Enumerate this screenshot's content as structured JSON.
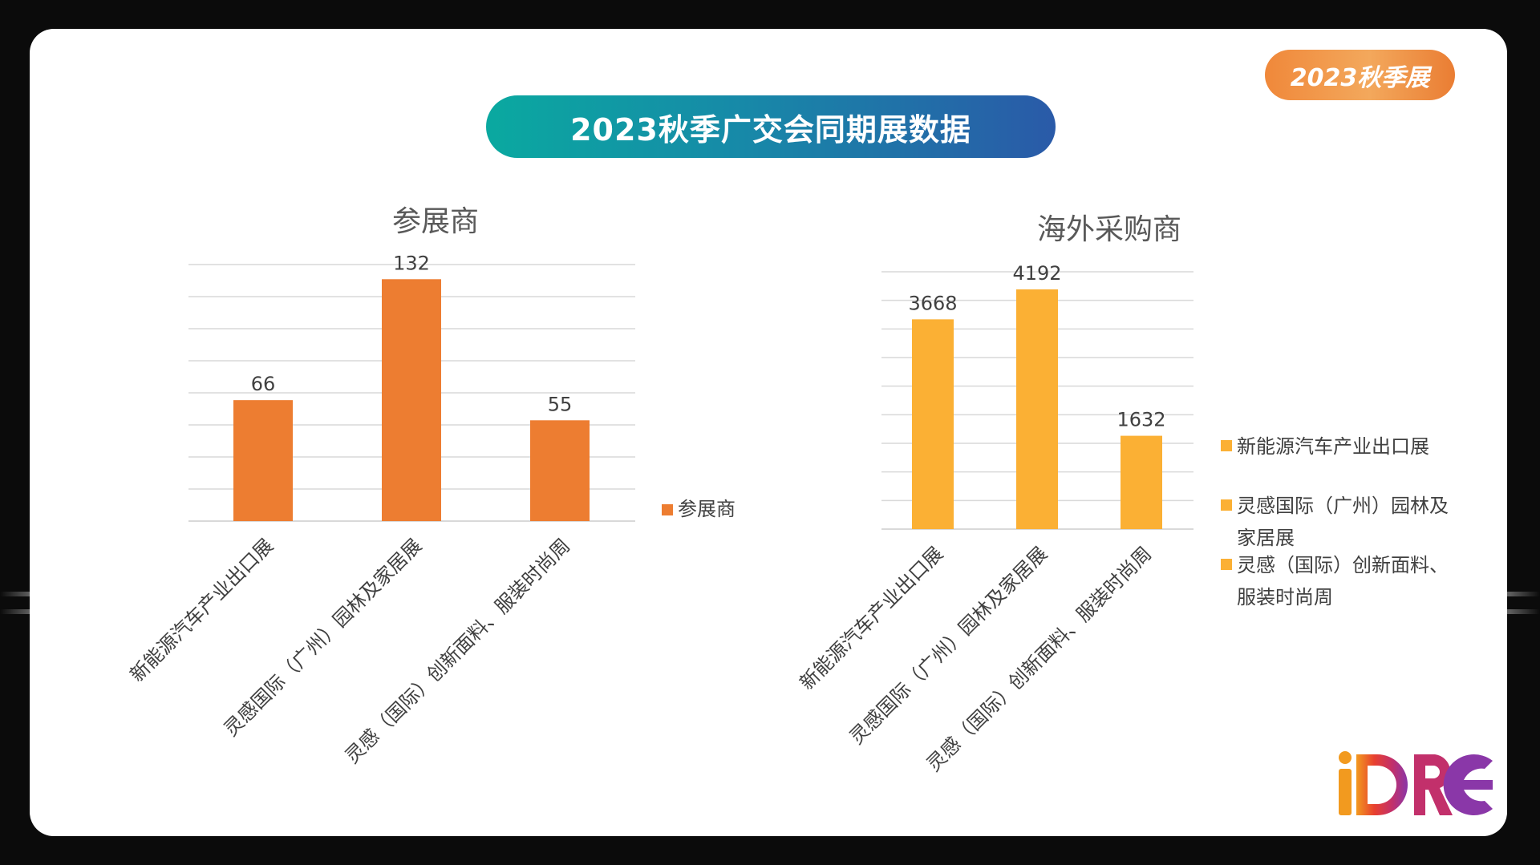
{
  "slide": {
    "title": "2023秋季广交会同期展数据",
    "badge": "2023秋季展",
    "logo_text": "iDRE"
  },
  "colors": {
    "chart1_bar": "#ED7D31",
    "chart2_bar": "#FBB034",
    "gridline": "#D9D9D9",
    "title_gradient_start": "#0AA9A0",
    "title_gradient_end": "#2A5AA8",
    "badge": "#F0883A"
  },
  "chart_data": [
    {
      "type": "bar",
      "title": "参展商",
      "categories": [
        "新能源汽车产业出口展",
        "灵感国际（广州）园林及家居展",
        "灵感（国际）创新面料、服装时尚周"
      ],
      "series": [
        {
          "name": "参展商",
          "values": [
            66,
            132,
            55
          ]
        }
      ],
      "ylim": [
        0,
        140
      ],
      "grid": true,
      "legend": "right",
      "data_labels": true
    },
    {
      "type": "bar",
      "title": "海外采购商",
      "categories": [
        "新能源汽车产业出口展",
        "灵感国际（广州）园林及家居展",
        "灵感（国际）创新面料、服装时尚周"
      ],
      "series": [
        {
          "values": [
            3668,
            4192,
            1632
          ]
        }
      ],
      "legend_entries": [
        "新能源汽车产业出口展",
        "灵感国际（广州）园林及家居展",
        "灵感（国际）创新面料、服装时尚周"
      ],
      "ylim": [
        0,
        4500
      ],
      "grid": true,
      "legend": "right",
      "data_labels": true
    }
  ]
}
